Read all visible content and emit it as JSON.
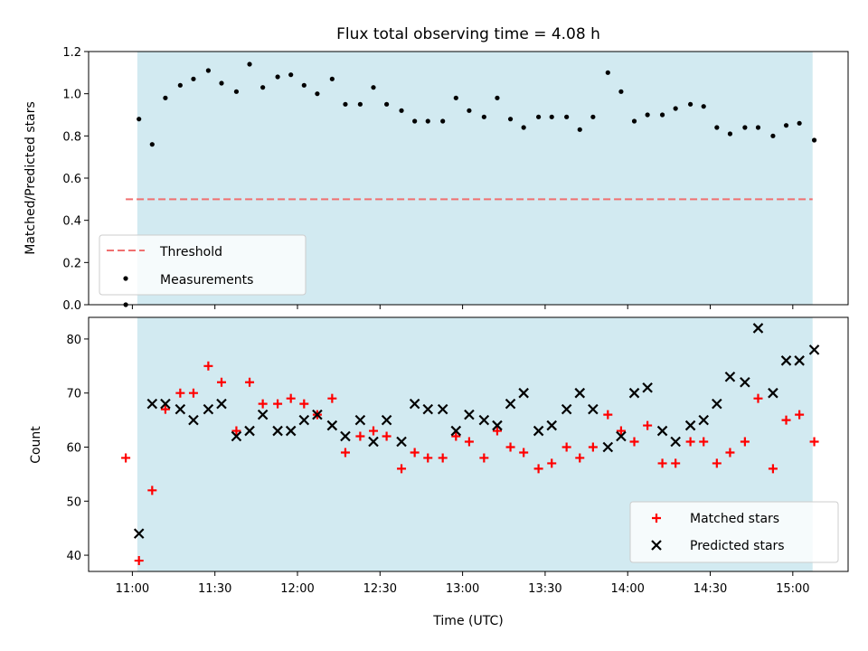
{
  "chart_data": {
    "title": "Flux total observing time = 4.08 h",
    "xlabel": "Time (UTC)",
    "x_ticks": [
      "11:00",
      "11:30",
      "12:00",
      "12:30",
      "13:00",
      "13:30",
      "14:00",
      "14:30",
      "15:00"
    ],
    "x_range_hours": [
      10.735,
      15.335
    ],
    "observing_window_hours": [
      11.03,
      15.12
    ],
    "colors": {
      "window": "#add8e6",
      "threshold": "#f07070",
      "measurement": "#000000",
      "matched": "#ff0000",
      "predicted": "#000000"
    },
    "panels": [
      {
        "type": "scatter",
        "ylabel": "Matched/Predicted stars",
        "ylim": [
          0,
          1.2
        ],
        "y_ticks": [
          "0.0",
          "0.2",
          "0.4",
          "0.6",
          "0.8",
          "1.0",
          "1.2"
        ],
        "legend_position": "lower-left",
        "threshold": {
          "name": "Threshold",
          "value": 0.5,
          "x_range_hours": [
            10.96,
            15.12
          ]
        },
        "series": [
          {
            "name": "Measurements",
            "points": [
              [
                10.96,
                0.0
              ],
              [
                11.04,
                0.88
              ],
              [
                11.12,
                0.76
              ],
              [
                11.2,
                0.98
              ],
              [
                11.29,
                1.04
              ],
              [
                11.37,
                1.07
              ],
              [
                11.46,
                1.11
              ],
              [
                11.54,
                1.05
              ],
              [
                11.63,
                1.01
              ],
              [
                11.71,
                1.14
              ],
              [
                11.79,
                1.03
              ],
              [
                11.88,
                1.08
              ],
              [
                11.96,
                1.09
              ],
              [
                12.04,
                1.04
              ],
              [
                12.12,
                1.0
              ],
              [
                12.21,
                1.07
              ],
              [
                12.29,
                0.95
              ],
              [
                12.38,
                0.95
              ],
              [
                12.46,
                1.03
              ],
              [
                12.54,
                0.95
              ],
              [
                12.63,
                0.92
              ],
              [
                12.71,
                0.87
              ],
              [
                12.79,
                0.87
              ],
              [
                12.88,
                0.87
              ],
              [
                12.96,
                0.98
              ],
              [
                13.04,
                0.92
              ],
              [
                13.13,
                0.89
              ],
              [
                13.21,
                0.98
              ],
              [
                13.29,
                0.88
              ],
              [
                13.37,
                0.84
              ],
              [
                13.46,
                0.89
              ],
              [
                13.54,
                0.89
              ],
              [
                13.63,
                0.89
              ],
              [
                13.71,
                0.83
              ],
              [
                13.79,
                0.89
              ],
              [
                13.88,
                1.1
              ],
              [
                13.96,
                1.01
              ],
              [
                14.04,
                0.87
              ],
              [
                14.12,
                0.9
              ],
              [
                14.21,
                0.9
              ],
              [
                14.29,
                0.93
              ],
              [
                14.38,
                0.95
              ],
              [
                14.46,
                0.94
              ],
              [
                14.54,
                0.84
              ],
              [
                14.62,
                0.81
              ],
              [
                14.71,
                0.84
              ],
              [
                14.79,
                0.84
              ],
              [
                14.88,
                0.8
              ],
              [
                14.96,
                0.85
              ],
              [
                15.04,
                0.86
              ],
              [
                15.13,
                0.78
              ]
            ]
          }
        ]
      },
      {
        "type": "scatter",
        "ylabel": "Count",
        "ylim": [
          37,
          84
        ],
        "y_ticks": [
          "40",
          "50",
          "60",
          "70",
          "80"
        ],
        "legend_position": "lower-right",
        "series": [
          {
            "name": "Matched stars",
            "marker": "plus",
            "points": [
              [
                10.96,
                58
              ],
              [
                11.04,
                39
              ],
              [
                11.12,
                52
              ],
              [
                11.2,
                67
              ],
              [
                11.29,
                70
              ],
              [
                11.37,
                70
              ],
              [
                11.46,
                75
              ],
              [
                11.54,
                72
              ],
              [
                11.63,
                63
              ],
              [
                11.71,
                72
              ],
              [
                11.79,
                68
              ],
              [
                11.88,
                68
              ],
              [
                11.96,
                69
              ],
              [
                12.04,
                68
              ],
              [
                12.12,
                66
              ],
              [
                12.21,
                69
              ],
              [
                12.29,
                59
              ],
              [
                12.38,
                62
              ],
              [
                12.46,
                63
              ],
              [
                12.54,
                62
              ],
              [
                12.63,
                56
              ],
              [
                12.71,
                59
              ],
              [
                12.79,
                58
              ],
              [
                12.88,
                58
              ],
              [
                12.96,
                62
              ],
              [
                13.04,
                61
              ],
              [
                13.13,
                58
              ],
              [
                13.21,
                63
              ],
              [
                13.29,
                60
              ],
              [
                13.37,
                59
              ],
              [
                13.46,
                56
              ],
              [
                13.54,
                57
              ],
              [
                13.63,
                60
              ],
              [
                13.71,
                58
              ],
              [
                13.79,
                60
              ],
              [
                13.88,
                66
              ],
              [
                13.96,
                63
              ],
              [
                14.04,
                61
              ],
              [
                14.12,
                64
              ],
              [
                14.21,
                57
              ],
              [
                14.29,
                57
              ],
              [
                14.38,
                61
              ],
              [
                14.46,
                61
              ],
              [
                14.54,
                57
              ],
              [
                14.62,
                59
              ],
              [
                14.71,
                61
              ],
              [
                14.79,
                69
              ],
              [
                14.88,
                56
              ],
              [
                14.96,
                65
              ],
              [
                15.04,
                66
              ],
              [
                15.13,
                61
              ]
            ]
          },
          {
            "name": "Predicted stars",
            "marker": "x",
            "points": [
              [
                11.04,
                44
              ],
              [
                11.12,
                68
              ],
              [
                11.2,
                68
              ],
              [
                11.29,
                67
              ],
              [
                11.37,
                65
              ],
              [
                11.46,
                67
              ],
              [
                11.54,
                68
              ],
              [
                11.63,
                62
              ],
              [
                11.71,
                63
              ],
              [
                11.79,
                66
              ],
              [
                11.88,
                63
              ],
              [
                11.96,
                63
              ],
              [
                12.04,
                65
              ],
              [
                12.12,
                66
              ],
              [
                12.21,
                64
              ],
              [
                12.29,
                62
              ],
              [
                12.38,
                65
              ],
              [
                12.46,
                61
              ],
              [
                12.54,
                65
              ],
              [
                12.63,
                61
              ],
              [
                12.71,
                68
              ],
              [
                12.79,
                67
              ],
              [
                12.88,
                67
              ],
              [
                12.96,
                63
              ],
              [
                13.04,
                66
              ],
              [
                13.13,
                65
              ],
              [
                13.21,
                64
              ],
              [
                13.29,
                68
              ],
              [
                13.37,
                70
              ],
              [
                13.46,
                63
              ],
              [
                13.54,
                64
              ],
              [
                13.63,
                67
              ],
              [
                13.71,
                70
              ],
              [
                13.79,
                67
              ],
              [
                13.88,
                60
              ],
              [
                13.96,
                62
              ],
              [
                14.04,
                70
              ],
              [
                14.12,
                71
              ],
              [
                14.21,
                63
              ],
              [
                14.29,
                61
              ],
              [
                14.38,
                64
              ],
              [
                14.46,
                65
              ],
              [
                14.54,
                68
              ],
              [
                14.62,
                73
              ],
              [
                14.71,
                72
              ],
              [
                14.79,
                82
              ],
              [
                14.88,
                70
              ],
              [
                14.96,
                76
              ],
              [
                15.04,
                76
              ],
              [
                15.13,
                78
              ]
            ]
          }
        ]
      }
    ]
  }
}
